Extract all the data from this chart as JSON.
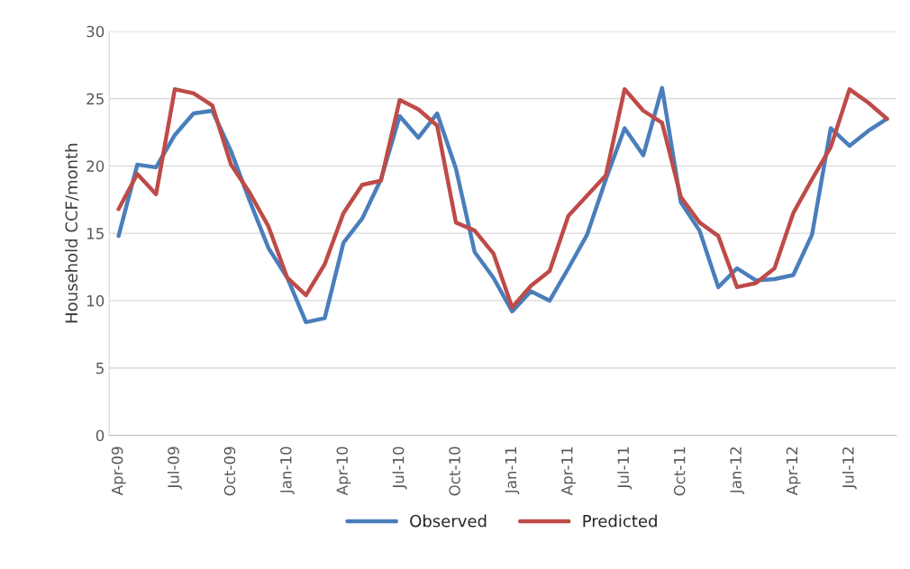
{
  "chart_data": {
    "type": "line",
    "ylabel": "Household CCF/month",
    "categories": [
      "Apr-09",
      null,
      null,
      "Jul-09",
      null,
      null,
      "Oct-09",
      null,
      null,
      "Jan-10",
      null,
      null,
      "Apr-10",
      null,
      null,
      "Jul-10",
      null,
      null,
      "Oct-10",
      null,
      null,
      "Jan-11",
      null,
      null,
      "Apr-11",
      null,
      null,
      "Jul-11",
      null,
      null,
      "Oct-11",
      null,
      null,
      "Jan-12",
      null,
      null,
      "Apr-12",
      null,
      null,
      "Jul-12",
      null,
      null
    ],
    "series": [
      {
        "name": "Observed",
        "color": "#4a7ebb",
        "values": [
          14.8,
          20.1,
          19.9,
          22.3,
          23.9,
          24.1,
          21.1,
          17.4,
          13.9,
          11.7,
          8.4,
          8.7,
          14.3,
          16.1,
          19.0,
          23.7,
          22.1,
          23.9,
          19.8,
          13.6,
          11.7,
          9.2,
          10.7,
          10.0,
          12.4,
          14.9,
          19.0,
          22.8,
          20.8,
          25.8,
          17.3,
          15.2,
          11.0,
          12.4,
          11.5,
          11.6,
          11.9,
          14.9,
          22.8,
          21.5,
          22.6,
          23.5
        ]
      },
      {
        "name": "Predicted",
        "color": "#be4b48",
        "values": [
          16.8,
          19.4,
          17.9,
          25.7,
          25.4,
          24.5,
          20.1,
          18.0,
          15.5,
          11.7,
          10.4,
          12.7,
          16.5,
          18.6,
          18.9,
          24.9,
          24.2,
          23.0,
          15.8,
          15.2,
          13.5,
          9.5,
          11.1,
          12.2,
          16.3,
          17.8,
          19.3,
          25.7,
          24.1,
          23.2,
          17.7,
          15.8,
          14.8,
          11.0,
          11.3,
          12.4,
          16.5,
          19.0,
          21.4,
          25.7,
          24.7,
          23.5
        ]
      }
    ],
    "ylim": [
      0,
      30
    ],
    "yticks": [
      0,
      5,
      10,
      15,
      20,
      25,
      30
    ],
    "grid": "y",
    "legend": "bottom",
    "marker": "none",
    "line_style": "solid"
  }
}
